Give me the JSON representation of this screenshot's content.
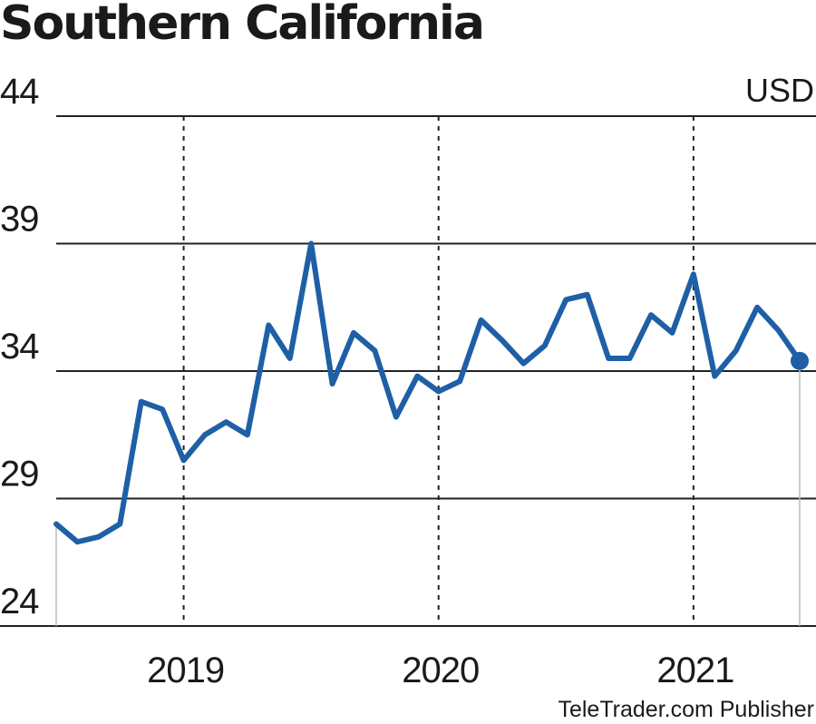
{
  "chart_data": {
    "type": "line",
    "title": "Southern California",
    "unit_label": "USD",
    "source": "TeleTrader.com Publisher",
    "ylim": [
      24,
      44
    ],
    "yticks": [
      "44",
      "39",
      "34",
      "29",
      "24"
    ],
    "xticks": [
      {
        "label": "2019",
        "x": "2019-01"
      },
      {
        "label": "2020",
        "x": "2020-01"
      },
      {
        "label": "2021",
        "x": "2021-01"
      }
    ],
    "xlim": [
      "2018-07",
      "2021-06"
    ],
    "line_color": "#1f5fa6",
    "grid": "horizontal solid lines at y ticks, dashed vertical lines at year starts",
    "series": [
      {
        "x": [
          "2018-07",
          "2018-08",
          "2018-09",
          "2018-10",
          "2018-11",
          "2018-12",
          "2019-01",
          "2019-02",
          "2019-03",
          "2019-04",
          "2019-05",
          "2019-06",
          "2019-07",
          "2019-08",
          "2019-09",
          "2019-10",
          "2019-11",
          "2019-12",
          "2020-01",
          "2020-02",
          "2020-03",
          "2020-04",
          "2020-05",
          "2020-06",
          "2020-07",
          "2020-08",
          "2020-09",
          "2020-10",
          "2020-11",
          "2020-12",
          "2021-01",
          "2021-02",
          "2021-03",
          "2021-04",
          "2021-05",
          "2021-06"
        ],
        "y": [
          28,
          27.3,
          27.5,
          28,
          32.8,
          32.5,
          30.5,
          31.5,
          32,
          31.5,
          35.8,
          34.5,
          39,
          33.5,
          35.5,
          34.8,
          32.2,
          33.8,
          33.2,
          33.6,
          36,
          35.2,
          34.3,
          35,
          36.8,
          37,
          34.5,
          34.5,
          36.2,
          35.5,
          37.8,
          33.8,
          34.8,
          36.5,
          35.6,
          34.4
        ]
      }
    ]
  }
}
